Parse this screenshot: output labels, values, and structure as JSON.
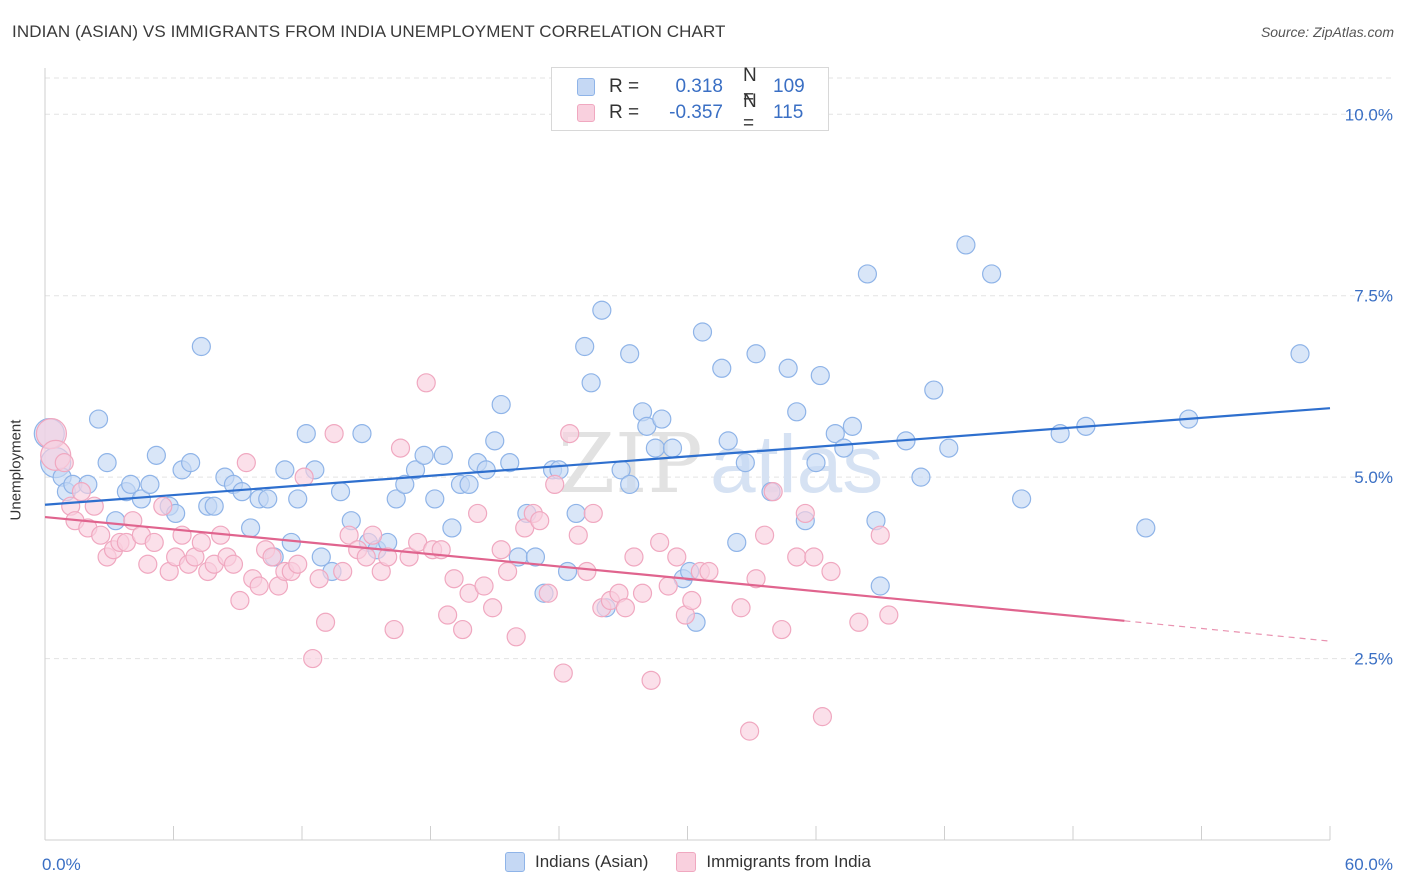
{
  "header": {
    "title": "INDIAN (ASIAN) VS IMMIGRANTS FROM INDIA UNEMPLOYMENT CORRELATION CHART",
    "source": "Source: ZipAtlas.com"
  },
  "watermark": {
    "zip": "ZIP",
    "atlas": "atlas"
  },
  "legend_top": {
    "rows": [
      {
        "r_label": "R =",
        "r_value": "0.318",
        "n_label": "N =",
        "n_value": "109",
        "color": "#8fb4e8",
        "fill": "#c5d8f4"
      },
      {
        "r_label": "R =",
        "r_value": "-0.357",
        "n_label": "N =",
        "n_value": "115",
        "color": "#f0a8c0",
        "fill": "#f9d0de"
      }
    ]
  },
  "chart_data": {
    "type": "scatter",
    "title": "INDIAN (ASIAN) VS IMMIGRANTS FROM INDIA UNEMPLOYMENT CORRELATION CHART",
    "ylabel": "Unemployment",
    "xlim": [
      0,
      60
    ],
    "ylim": [
      0,
      10.5
    ],
    "x_tick_labels": [
      "0.0%",
      "60.0%"
    ],
    "y_ticks": [
      2.5,
      5.0,
      7.5,
      10.0
    ],
    "y_tick_labels": [
      "2.5%",
      "5.0%",
      "7.5%",
      "10.0%"
    ],
    "grid": true,
    "legend_position": "bottom",
    "series": [
      {
        "name": "Indians (Asian)",
        "color": "#8fb4e8",
        "fill": "#c5d8f4",
        "line_color": "#2e6fce",
        "trend": {
          "x": [
            0,
            60
          ],
          "y": [
            4.62,
            5.95
          ]
        },
        "points": [
          [
            0.2,
            5.6
          ],
          [
            0.5,
            5.2
          ],
          [
            0.8,
            5.0
          ],
          [
            1.0,
            4.8
          ],
          [
            1.3,
            4.9
          ],
          [
            2.0,
            4.9
          ],
          [
            2.5,
            5.8
          ],
          [
            2.9,
            5.2
          ],
          [
            3.3,
            4.4
          ],
          [
            3.8,
            4.8
          ],
          [
            4.0,
            4.9
          ],
          [
            4.5,
            4.7
          ],
          [
            4.9,
            4.9
          ],
          [
            5.2,
            5.3
          ],
          [
            5.8,
            4.6
          ],
          [
            6.1,
            4.5
          ],
          [
            6.4,
            5.1
          ],
          [
            6.8,
            5.2
          ],
          [
            7.3,
            6.8
          ],
          [
            7.6,
            4.6
          ],
          [
            7.9,
            4.6
          ],
          [
            8.4,
            5.0
          ],
          [
            8.8,
            4.9
          ],
          [
            9.2,
            4.8
          ],
          [
            9.6,
            4.3
          ],
          [
            10.0,
            4.7
          ],
          [
            10.4,
            4.7
          ],
          [
            10.7,
            3.9
          ],
          [
            11.2,
            5.1
          ],
          [
            11.5,
            4.1
          ],
          [
            11.8,
            4.7
          ],
          [
            12.2,
            5.6
          ],
          [
            12.6,
            5.1
          ],
          [
            12.9,
            3.9
          ],
          [
            13.4,
            3.7
          ],
          [
            13.8,
            4.8
          ],
          [
            14.3,
            4.4
          ],
          [
            14.8,
            5.6
          ],
          [
            15.1,
            4.1
          ],
          [
            15.5,
            4.0
          ],
          [
            16.0,
            4.1
          ],
          [
            16.4,
            4.7
          ],
          [
            16.8,
            4.9
          ],
          [
            17.3,
            5.1
          ],
          [
            17.7,
            5.3
          ],
          [
            18.2,
            4.7
          ],
          [
            18.6,
            5.3
          ],
          [
            19.0,
            4.3
          ],
          [
            19.4,
            4.9
          ],
          [
            19.8,
            4.9
          ],
          [
            20.2,
            5.2
          ],
          [
            20.6,
            5.1
          ],
          [
            21.0,
            5.5
          ],
          [
            21.3,
            6.0
          ],
          [
            21.7,
            5.2
          ],
          [
            22.1,
            3.9
          ],
          [
            22.5,
            4.5
          ],
          [
            22.9,
            3.9
          ],
          [
            23.3,
            3.4
          ],
          [
            23.7,
            5.1
          ],
          [
            24.0,
            5.1
          ],
          [
            24.4,
            3.7
          ],
          [
            24.8,
            4.5
          ],
          [
            25.2,
            6.8
          ],
          [
            25.5,
            6.3
          ],
          [
            26.2,
            3.2
          ],
          [
            26.0,
            7.3
          ],
          [
            26.9,
            5.1
          ],
          [
            27.3,
            4.9
          ],
          [
            27.3,
            6.7
          ],
          [
            27.9,
            5.9
          ],
          [
            28.1,
            5.7
          ],
          [
            28.5,
            5.4
          ],
          [
            28.8,
            5.8
          ],
          [
            29.3,
            5.4
          ],
          [
            29.8,
            3.6
          ],
          [
            30.1,
            3.7
          ],
          [
            30.4,
            3.0
          ],
          [
            30.7,
            7.0
          ],
          [
            31.6,
            6.5
          ],
          [
            31.9,
            5.5
          ],
          [
            32.3,
            4.1
          ],
          [
            32.7,
            5.2
          ],
          [
            33.2,
            6.7
          ],
          [
            33.9,
            4.8
          ],
          [
            34.7,
            6.5
          ],
          [
            35.1,
            5.9
          ],
          [
            35.5,
            4.4
          ],
          [
            36.0,
            5.2
          ],
          [
            36.2,
            6.4
          ],
          [
            36.9,
            5.6
          ],
          [
            37.3,
            5.4
          ],
          [
            37.7,
            5.7
          ],
          [
            38.4,
            7.8
          ],
          [
            38.8,
            4.4
          ],
          [
            39.0,
            3.5
          ],
          [
            40.2,
            5.5
          ],
          [
            40.9,
            5.0
          ],
          [
            41.5,
            6.2
          ],
          [
            42.2,
            5.4
          ],
          [
            43.0,
            8.2
          ],
          [
            44.2,
            7.8
          ],
          [
            45.6,
            4.7
          ],
          [
            47.4,
            5.6
          ],
          [
            48.6,
            5.7
          ],
          [
            51.4,
            4.3
          ],
          [
            53.4,
            5.8
          ],
          [
            58.6,
            6.7
          ]
        ]
      },
      {
        "name": "Immigrants from India",
        "color": "#f0a8c0",
        "fill": "#f9d0de",
        "line_color": "#e0648e",
        "trend": {
          "x": [
            0,
            50.4
          ],
          "y": [
            4.45,
            3.02
          ]
        },
        "trend_dashed": {
          "x": [
            50.4,
            60
          ],
          "y": [
            3.02,
            2.74
          ]
        },
        "points": [
          [
            0.3,
            5.6
          ],
          [
            0.5,
            5.3
          ],
          [
            0.9,
            5.2
          ],
          [
            1.2,
            4.6
          ],
          [
            1.4,
            4.4
          ],
          [
            1.7,
            4.8
          ],
          [
            2.0,
            4.3
          ],
          [
            2.3,
            4.6
          ],
          [
            2.6,
            4.2
          ],
          [
            2.9,
            3.9
          ],
          [
            3.2,
            4.0
          ],
          [
            3.5,
            4.1
          ],
          [
            3.8,
            4.1
          ],
          [
            4.1,
            4.4
          ],
          [
            4.5,
            4.2
          ],
          [
            4.8,
            3.8
          ],
          [
            5.1,
            4.1
          ],
          [
            5.5,
            4.6
          ],
          [
            5.8,
            3.7
          ],
          [
            6.1,
            3.9
          ],
          [
            6.4,
            4.2
          ],
          [
            6.7,
            3.8
          ],
          [
            7.0,
            3.9
          ],
          [
            7.3,
            4.1
          ],
          [
            7.6,
            3.7
          ],
          [
            7.9,
            3.8
          ],
          [
            8.2,
            4.2
          ],
          [
            8.5,
            3.9
          ],
          [
            8.8,
            3.8
          ],
          [
            9.1,
            3.3
          ],
          [
            9.4,
            5.2
          ],
          [
            9.7,
            3.6
          ],
          [
            10.0,
            3.5
          ],
          [
            10.3,
            4.0
          ],
          [
            10.6,
            3.9
          ],
          [
            10.9,
            3.5
          ],
          [
            11.2,
            3.7
          ],
          [
            11.5,
            3.7
          ],
          [
            11.8,
            3.8
          ],
          [
            12.1,
            5.0
          ],
          [
            12.5,
            2.5
          ],
          [
            12.8,
            3.6
          ],
          [
            13.1,
            3.0
          ],
          [
            13.5,
            5.6
          ],
          [
            13.9,
            3.7
          ],
          [
            14.2,
            4.2
          ],
          [
            14.6,
            4.0
          ],
          [
            15.0,
            3.9
          ],
          [
            15.3,
            4.2
          ],
          [
            15.7,
            3.7
          ],
          [
            16.0,
            3.9
          ],
          [
            16.3,
            2.9
          ],
          [
            16.6,
            5.4
          ],
          [
            17.0,
            3.9
          ],
          [
            17.4,
            4.1
          ],
          [
            17.8,
            6.3
          ],
          [
            18.1,
            4.0
          ],
          [
            18.5,
            4.0
          ],
          [
            18.8,
            3.1
          ],
          [
            19.1,
            3.6
          ],
          [
            19.5,
            2.9
          ],
          [
            19.8,
            3.4
          ],
          [
            20.2,
            4.5
          ],
          [
            20.5,
            3.5
          ],
          [
            20.9,
            3.2
          ],
          [
            21.3,
            4.0
          ],
          [
            21.6,
            3.7
          ],
          [
            22.0,
            2.8
          ],
          [
            22.4,
            4.3
          ],
          [
            22.8,
            4.5
          ],
          [
            23.1,
            4.4
          ],
          [
            23.5,
            3.4
          ],
          [
            23.8,
            4.9
          ],
          [
            24.2,
            2.3
          ],
          [
            24.5,
            5.6
          ],
          [
            24.9,
            4.2
          ],
          [
            25.3,
            3.7
          ],
          [
            25.6,
            4.5
          ],
          [
            26.0,
            3.2
          ],
          [
            26.4,
            3.3
          ],
          [
            26.8,
            3.4
          ],
          [
            27.1,
            3.2
          ],
          [
            27.5,
            3.9
          ],
          [
            27.9,
            3.4
          ],
          [
            28.3,
            2.2
          ],
          [
            28.7,
            4.1
          ],
          [
            29.1,
            3.5
          ],
          [
            29.5,
            3.9
          ],
          [
            29.9,
            3.1
          ],
          [
            30.2,
            3.3
          ],
          [
            30.6,
            3.7
          ],
          [
            31.0,
            3.7
          ],
          [
            32.5,
            3.2
          ],
          [
            32.9,
            1.5
          ],
          [
            33.2,
            3.6
          ],
          [
            33.6,
            4.2
          ],
          [
            34.0,
            4.8
          ],
          [
            34.4,
            2.9
          ],
          [
            35.1,
            3.9
          ],
          [
            35.5,
            4.5
          ],
          [
            35.9,
            3.9
          ],
          [
            36.3,
            1.7
          ],
          [
            36.7,
            3.7
          ],
          [
            38.0,
            3.0
          ],
          [
            39.0,
            4.2
          ],
          [
            39.4,
            3.1
          ]
        ]
      }
    ]
  }
}
